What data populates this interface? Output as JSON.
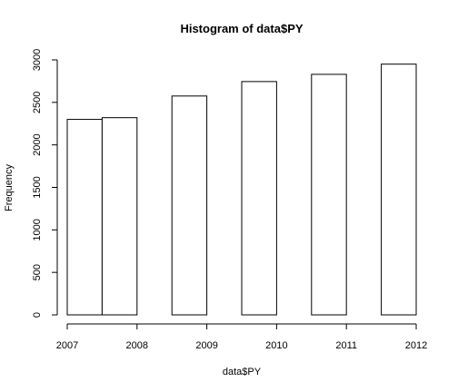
{
  "chart_data": {
    "type": "bar",
    "title": "Histogram of data$PY",
    "xlabel": "data$PY",
    "ylabel": "Frequency",
    "bins": [
      {
        "start": 2007.0,
        "end": 2007.5,
        "value": 2300
      },
      {
        "start": 2007.5,
        "end": 2008.0,
        "value": 2320
      },
      {
        "start": 2008.5,
        "end": 2009.0,
        "value": 2575
      },
      {
        "start": 2009.5,
        "end": 2010.0,
        "value": 2745
      },
      {
        "start": 2010.5,
        "end": 2011.0,
        "value": 2830
      },
      {
        "start": 2011.5,
        "end": 2012.0,
        "value": 2950
      }
    ],
    "xlim": [
      2007,
      2012
    ],
    "ylim": [
      0,
      3000
    ],
    "x_ticks": [
      "2007",
      "2008",
      "2009",
      "2010",
      "2011",
      "2012"
    ],
    "y_ticks": [
      "0",
      "500",
      "1000",
      "1500",
      "2000",
      "2500",
      "3000"
    ],
    "grid": false,
    "legend": "none"
  }
}
